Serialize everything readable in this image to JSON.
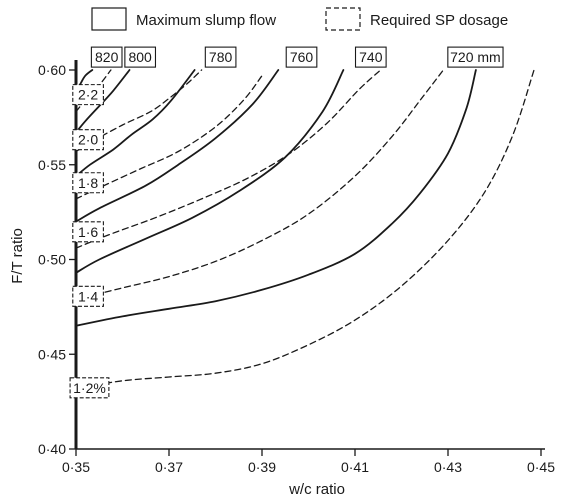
{
  "chart_data": {
    "type": "line",
    "xlabel": "w/c ratio",
    "ylabel": "F/T ratio",
    "xlim": [
      0.35,
      0.45
    ],
    "ylim": [
      0.4,
      0.6
    ],
    "xticks": [
      "0·35",
      "0·37",
      "0·39",
      "0·41",
      "0·43",
      "0·45"
    ],
    "yticks": [
      "0·40",
      "0·45",
      "0·50",
      "0·55",
      "0·60"
    ],
    "legend": {
      "placement": "top",
      "entries": [
        {
          "label": "Maximum slump flow",
          "style": "solid"
        },
        {
          "label": "Required SP dosage",
          "style": "dashed"
        }
      ]
    },
    "series": [
      {
        "name": "820",
        "group": "Maximum slump flow",
        "style": "solid",
        "x": [
          0.35,
          0.351,
          0.352,
          0.3535
        ],
        "y": [
          0.589,
          0.593,
          0.597,
          0.6
        ]
      },
      {
        "name": "800",
        "group": "Maximum slump flow",
        "style": "solid",
        "x": [
          0.35,
          0.352,
          0.355,
          0.358,
          0.3615
        ],
        "y": [
          0.567,
          0.573,
          0.581,
          0.589,
          0.6
        ]
      },
      {
        "name": "780",
        "group": "Maximum slump flow",
        "style": "solid",
        "x": [
          0.35,
          0.353,
          0.358,
          0.362,
          0.3665,
          0.3705,
          0.3755
        ],
        "y": [
          0.544,
          0.55,
          0.558,
          0.566,
          0.574,
          0.584,
          0.6
        ]
      },
      {
        "name": "760",
        "group": "Maximum slump flow",
        "style": "solid",
        "x": [
          0.35,
          0.355,
          0.365,
          0.372,
          0.38,
          0.388,
          0.3935
        ],
        "y": [
          0.52,
          0.527,
          0.539,
          0.55,
          0.564,
          0.582,
          0.6
        ]
      },
      {
        "name": "740",
        "group": "Maximum slump flow",
        "style": "solid",
        "x": [
          0.35,
          0.355,
          0.365,
          0.375,
          0.385,
          0.395,
          0.403,
          0.4075
        ],
        "y": [
          0.493,
          0.5,
          0.511,
          0.522,
          0.536,
          0.554,
          0.578,
          0.6
        ]
      },
      {
        "name": "720 mm",
        "group": "Maximum slump flow",
        "style": "solid",
        "x": [
          0.35,
          0.36,
          0.37,
          0.38,
          0.39,
          0.4,
          0.41,
          0.418,
          0.424,
          0.43,
          0.434,
          0.436
        ],
        "y": [
          0.465,
          0.47,
          0.474,
          0.478,
          0.484,
          0.492,
          0.503,
          0.519,
          0.535,
          0.556,
          0.58,
          0.6
        ]
      },
      {
        "name": "2·2",
        "group": "Required SP dosage",
        "style": "dashed",
        "x": [
          0.35,
          0.352,
          0.355,
          0.3575
        ],
        "y": [
          0.578,
          0.584,
          0.592,
          0.6
        ]
      },
      {
        "name": "2·0",
        "group": "Required SP dosage",
        "style": "dashed",
        "x": [
          0.35,
          0.354,
          0.36,
          0.366,
          0.37,
          0.374,
          0.377
        ],
        "y": [
          0.557,
          0.563,
          0.571,
          0.578,
          0.585,
          0.593,
          0.6
        ]
      },
      {
        "name": "1·8",
        "group": "Required SP dosage",
        "style": "dashed",
        "x": [
          0.35,
          0.356,
          0.364,
          0.372,
          0.38,
          0.386,
          0.39
        ],
        "y": [
          0.532,
          0.539,
          0.548,
          0.557,
          0.57,
          0.584,
          0.597
        ]
      },
      {
        "name": "1·6",
        "group": "Required SP dosage",
        "style": "dashed",
        "x": [
          0.35,
          0.357,
          0.367,
          0.377,
          0.387,
          0.396,
          0.404,
          0.411,
          0.4155
        ],
        "y": [
          0.506,
          0.513,
          0.522,
          0.532,
          0.543,
          0.556,
          0.572,
          0.59,
          0.6
        ]
      },
      {
        "name": "1·4",
        "group": "Required SP dosage",
        "style": "dashed",
        "x": [
          0.35,
          0.36,
          0.37,
          0.38,
          0.39,
          0.4,
          0.41,
          0.418,
          0.424,
          0.429
        ],
        "y": [
          0.479,
          0.485,
          0.491,
          0.499,
          0.51,
          0.524,
          0.544,
          0.565,
          0.584,
          0.6
        ]
      },
      {
        "name": "1·2%",
        "group": "Required SP dosage",
        "style": "dashed",
        "x": [
          0.35,
          0.36,
          0.37,
          0.38,
          0.39,
          0.4,
          0.41,
          0.42,
          0.43,
          0.438,
          0.444,
          0.4485
        ],
        "y": [
          0.432,
          0.436,
          0.438,
          0.44,
          0.445,
          0.455,
          0.468,
          0.486,
          0.51,
          0.536,
          0.566,
          0.6
        ]
      }
    ],
    "contour_labels": [
      {
        "text": "820",
        "style": "solid",
        "x": 0.3566,
        "y": 0.6068
      },
      {
        "text": "800",
        "style": "solid",
        "x": 0.3638,
        "y": 0.6068
      },
      {
        "text": "780",
        "style": "solid",
        "x": 0.3811,
        "y": 0.6068
      },
      {
        "text": "760",
        "style": "solid",
        "x": 0.3985,
        "y": 0.6068
      },
      {
        "text": "740",
        "style": "solid",
        "x": 0.4134,
        "y": 0.6068
      },
      {
        "text": "720 mm",
        "style": "solid",
        "x": 0.4359,
        "y": 0.6068
      },
      {
        "text": "2·2",
        "style": "dashed",
        "x": 0.3526,
        "y": 0.587
      },
      {
        "text": "2·0",
        "style": "dashed",
        "x": 0.3526,
        "y": 0.5632
      },
      {
        "text": "1·8",
        "style": "dashed",
        "x": 0.3526,
        "y": 0.5405
      },
      {
        "text": "1·6",
        "style": "dashed",
        "x": 0.3526,
        "y": 0.5146
      },
      {
        "text": "1·4",
        "style": "dashed",
        "x": 0.3526,
        "y": 0.4806
      },
      {
        "text": "1·2%",
        "style": "dashed",
        "x": 0.3529,
        "y": 0.4323
      }
    ]
  }
}
